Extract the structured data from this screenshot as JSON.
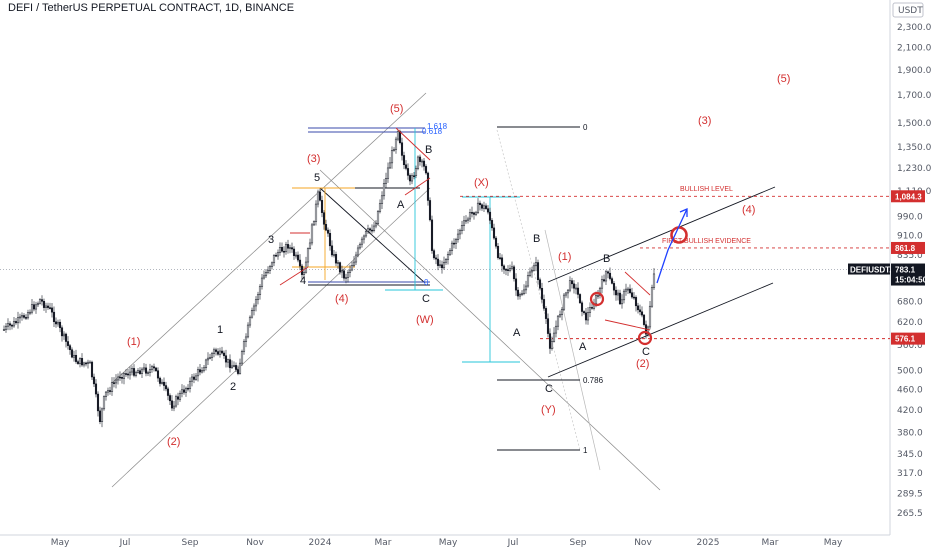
{
  "header": {
    "title": "DEFI / TetherUS PERPETUAL CONTRACT, 1D, BINANCE"
  },
  "colors": {
    "accent_red": "#d32f2f",
    "candle": "#131722",
    "channel": "#555555",
    "cyan": "#26c6da",
    "blue": "#1e40ff",
    "fib_blue": "#3949ab"
  },
  "chart_data": {
    "type": "candlestick",
    "symbol": "DEFIUSDT.P",
    "currency": "USDT",
    "log_scale": true,
    "grid": false,
    "ylim": [
      245,
      2700
    ],
    "x_labels": [
      "May",
      "Jul",
      "Sep",
      "Nov",
      "2024",
      "Mar",
      "May",
      "Jul",
      "Sep",
      "Nov",
      "2025",
      "Mar",
      "May"
    ],
    "y_ticks": [
      "2,300.0",
      "2,100.0",
      "1,900.0",
      "1,700.0",
      "1,500.0",
      "1,350.0",
      "1,230.0",
      "1,110.0",
      "990.0",
      "910.0",
      "835.0",
      "680.0",
      "620.0",
      "560.0",
      "500.0",
      "460.0",
      "420.0",
      "380.0",
      "345.0",
      "317.0",
      "289.5",
      "265.5"
    ],
    "y_tick_values": [
      2300,
      2100,
      1900,
      1700,
      1500,
      1350,
      1230,
      1110,
      990,
      910,
      835,
      680,
      620,
      560,
      500,
      460,
      420,
      380,
      345,
      317,
      289.5,
      265.5
    ],
    "price_tags": [
      {
        "label": "1,084.3",
        "value": 1084.3,
        "color": "#d32f2f",
        "text_color": "#ffffff"
      },
      {
        "label": "861.8",
        "value": 861.8,
        "color": "#d32f2f",
        "text_color": "#ffffff"
      },
      {
        "label": "576.1",
        "value": 576.1,
        "color": "#d32f2f",
        "text_color": "#ffffff"
      }
    ],
    "last_price": {
      "symbol": "DEFIUSDT.P",
      "price": "783.1",
      "countdown": "15:04:50",
      "value": 783.1
    },
    "levels": [
      {
        "label": "BULLISH LEVEL",
        "value": 1084.3
      },
      {
        "label": "FIRST BULLISH EVIDENCE",
        "value": 861.8
      }
    ],
    "fib_labels": [
      "0",
      "1",
      "0.786",
      "1.618",
      "0.618",
      "0"
    ],
    "wave_labels_red": [
      "(1)",
      "(2)",
      "(3)",
      "(4)",
      "(5)",
      "(W)",
      "(X)",
      "(Y)",
      "(1)",
      "(2)",
      "(3)",
      "(4)",
      "(5)"
    ],
    "wave_labels_black": [
      "1",
      "2",
      "3",
      "4",
      "5",
      "A",
      "B",
      "C",
      "A",
      "B",
      "C",
      "A",
      "B",
      "C"
    ],
    "y_axis_unit": "USDT"
  }
}
